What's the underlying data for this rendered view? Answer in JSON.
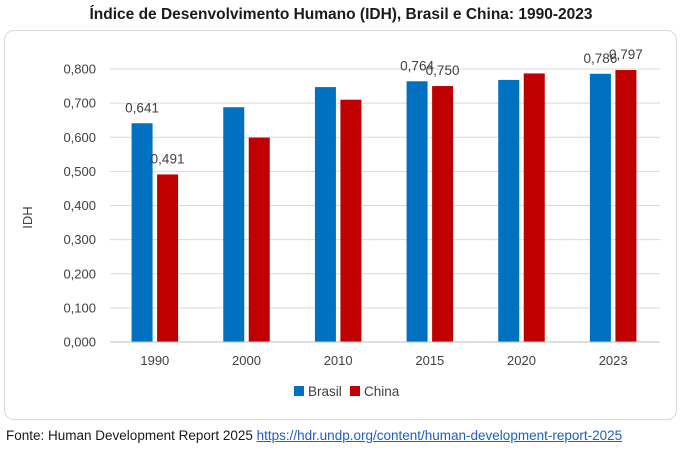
{
  "title": "Índice de Desenvolvimento Humano (IDH), Brasil e China: 1990-2023",
  "source": {
    "prefix": "Fonte: Human Development Report 2025 ",
    "link_text": "https://hdr.undp.org/content/human-development-report-2025"
  },
  "colors": {
    "brasil": "#0070c0",
    "china": "#c00000",
    "grid": "#d9d9d9"
  },
  "chart_data": {
    "type": "bar",
    "categories": [
      "1990",
      "2000",
      "2010",
      "2015",
      "2020",
      "2023"
    ],
    "series": [
      {
        "name": "Brasil",
        "values": [
          0.641,
          0.688,
          0.747,
          0.764,
          0.768,
          0.786
        ]
      },
      {
        "name": "China",
        "values": [
          0.491,
          0.599,
          0.71,
          0.75,
          0.787,
          0.797
        ]
      }
    ],
    "data_labels": [
      {
        "series": "Brasil",
        "category": "1990",
        "text": "0,641"
      },
      {
        "series": "China",
        "category": "1990",
        "text": "0,491"
      },
      {
        "series": "Brasil",
        "category": "2015",
        "text": "0,764"
      },
      {
        "series": "China",
        "category": "2015",
        "text": "0,750"
      },
      {
        "series": "Brasil",
        "category": "2023",
        "text": "0,786"
      },
      {
        "series": "China",
        "category": "2023",
        "text": "0,797"
      }
    ],
    "ylabel": "IDH",
    "xlabel": "",
    "ylim": [
      0,
      0.8
    ],
    "yticks": [
      "0,000",
      "0,100",
      "0,200",
      "0,300",
      "0,400",
      "0,500",
      "0,600",
      "0,700",
      "0,800"
    ],
    "grid": true,
    "legend": "bottom"
  }
}
